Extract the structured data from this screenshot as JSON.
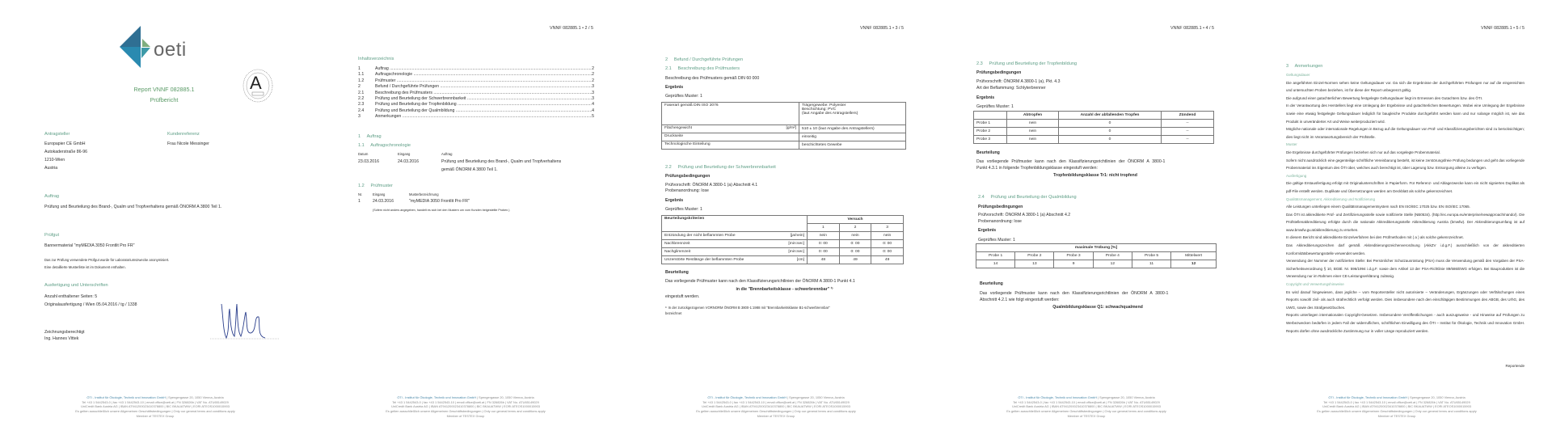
{
  "colors": {
    "heading_green": "#5e9e86",
    "footer_blue": "#4a88a8"
  },
  "footer": {
    "org": "ÖTI - Institut für Ökologie, Technik und Innovation GmbH",
    "address": " | Spengergasse 20, 1050 Vienna, Austria",
    "line2": "Tel +43 1 5442543-0 | fax +43 1 5442543-10 | email office@oeti.at | FN 326826b | VAT No. ATU65149029",
    "line3": "UniCredit Bank Austria AG | IBAN AT941200023410378800 | BIC BKAUATWW | EORI ATEOS1000015903",
    "line4": "Es gelten ausschließlich unsere Allgemeinen Geschäftsbedingungen | Only our general terms and conditions apply",
    "line5": "Member of TESTEX Group"
  },
  "page1": {
    "logo_text": "oeti",
    "seal_letter": "A",
    "report_title": "Report VNNF 082885.1",
    "report_subtitle": "Prüfbericht",
    "applicant_label": "Antragsteller",
    "applicant_lines": [
      "Europapier CE GmbH",
      "Autokaderstraße 86-96",
      "1210-Wien",
      "Austria"
    ],
    "customer_ref_label": "Kundenreferenz",
    "customer_ref": "Frau Nicole Messinger",
    "order_label": "Auftrag",
    "order_text": "Prüfung und Beurteilung des Brand-, Qualm und Tropfverhaltens gemäß ÖNORM A 3800 Teil 1.",
    "item_label": "Prüfgut",
    "item_text": "Bannermaterial \"myMEDIA 3050 Frontlit Pro FR\"",
    "item_note1": "Das zur Prüfung verwendete Prüfgut wurde für Laboratoriumszwecke anonymisiert.",
    "item_note2": "Eine detaillierte Musterliste ist im Dokument enthalten.",
    "execution_label": "Ausfertigung und Unterschriften",
    "pages_count": "Anzahl enthaltener Seiten: 5",
    "original": "Originalausfertigung / Wien  05.04.2016 / tg / 1338",
    "signatory_label": "Zeichnungsberechtigt",
    "signatory_name": "Ing. Hannes Vittek"
  },
  "page2": {
    "header": "VNNF 082885.1  •  2 / 5",
    "toc_title": "Inhaltsverzeichnis",
    "toc": [
      {
        "num": "1",
        "title": "Auftrag",
        "page": "2"
      },
      {
        "num": "1.1",
        "title": "Auftragschronologie",
        "page": "2"
      },
      {
        "num": "1.2",
        "title": "Prüfmuster",
        "page": "2"
      },
      {
        "num": "2",
        "title": "Befund / Durchgeführte Prüfungen",
        "page": "3"
      },
      {
        "num": "2.1",
        "title": "Beschreibung des Prüfmusters",
        "page": "3"
      },
      {
        "num": "2.2",
        "title": "Prüfung und Beurteilung der Schwerbrennbarkeit",
        "page": "3"
      },
      {
        "num": "2.3",
        "title": "Prüfung und Beurteilung der Tropfenbildung",
        "page": "4"
      },
      {
        "num": "2.4",
        "title": "Prüfung und Beurteilung der Qualmbildung",
        "page": "4"
      },
      {
        "num": "3",
        "title": "Anmerkungen",
        "page": "5"
      }
    ],
    "s1": "1     Auftrag",
    "s11": "1.1     Auftragschronologie",
    "chron_headers": [
      "Datum",
      "Eingang",
      "Auftrag"
    ],
    "chron_row": [
      "23.03.2016",
      "24.03.2016",
      "Prüfung und Beurteilung des Brand-, Qualm und Tropfverhaltens",
      "gemäß ÖNORM A 3800 Teil 1."
    ],
    "s12": "1.2     Prüfmuster",
    "sample_headers": [
      "Nr.",
      "Eingang",
      "Musterbezeichnung"
    ],
    "sample_row": [
      "1",
      "24.03.2016",
      "\"myMEDIA 3050 Frontlit Pro FR\""
    ],
    "sample_note": "(Sofern nicht anders angegeben, handelt es sich bei den Mustern um vom Kunden beigestellte Proben.)"
  },
  "page3": {
    "header": "VNNF 082885.1  •  3 / 5",
    "s2": "2     Befund / Durchgeführte Prüfungen",
    "s21": "2.1     Beschreibung des Prüfmusters",
    "desc": "Beschreibung des Prüfmusters gemäß DIN 60 000",
    "result": "Ergebnis",
    "tested": "Geprüftes Muster: 1",
    "t1": [
      {
        "k": "Faserart gemäß DIN ISO 2076",
        "u": "",
        "v": [
          "Trägergewebe: Polyester",
          "Beschichtung: PVC",
          "(laut Angabe des Antragstellers)"
        ]
      },
      {
        "k": "Flächengewicht",
        "u": "[g/m²]",
        "v": [
          "510 ± 10 (laut Angabe des Antragstellers)"
        ]
      },
      {
        "k": "Druckseite",
        "u": "",
        "v": [
          "einseitig"
        ]
      },
      {
        "k": "Technologische Einteilung",
        "u": "",
        "v": [
          "beschichtetes Gewebe"
        ]
      }
    ],
    "s22": "2.2     Prüfung und Beurteilung der Schwerbrennbarkeit",
    "conditions": "Prüfungsbedingungen",
    "spec": "Prüfvorschrift: ÖNORM A 3800-1 (a) Abschnitt 4.1",
    "arrangement": "Probenanordnung: lose",
    "result2": "Ergebnis",
    "tested2": "Geprüftes Muster: 1",
    "t2_head": "Beurteilungskriterien",
    "t2_group": "Versuch",
    "t2_cols": [
      "1",
      "2",
      "3"
    ],
    "t2_rows": [
      {
        "k": "Entzündung der nicht beflammten Probe",
        "u": "[ja/nein]",
        "v": [
          "nein",
          "nein",
          "nein"
        ]
      },
      {
        "k": "Nachbrennzeit",
        "u": "[min:sec]",
        "v": [
          "0: 00",
          "0: 00",
          "0: 00"
        ]
      },
      {
        "k": "Nachglimmzeit",
        "u": "[min:sec]",
        "v": [
          "0: 00",
          "0: 00",
          "0: 00"
        ]
      },
      {
        "k": "Unzerstörte Restlänge der beflammten Probe",
        "u": "[cm]",
        "v": [
          "48",
          "49",
          "49"
        ]
      }
    ],
    "assessment": "Beurteilung",
    "assess_text": "Das vorliegende Prüfmuster kann nach den Klassifizierungsrichtlinien der ÖNORM A 3800-1 Punkt 4.1",
    "assess_class": "in die \"Brennbarkeitsklasse - schwerbrennbar\" ¹⁾",
    "assess_end": "eingestuft werden.",
    "footnote1": "¹⁾ In der zurückgezogenen VORNORM ÖNORM B 3800-1:1988 mit \"Brennbarkeitsklasse B1-schwerbrennbar\"",
    "footnote2": "bezeichnet"
  },
  "page4": {
    "header": "VNNF 082885.1  •  4 / 5",
    "s23": "2.3     Prüfung und Beurteilung der Tropfenbildung",
    "conditions": "Prüfungsbedingungen",
    "spec": "Prüfvorschrift: ÖNORM A 3800-1 (a), Pkt. 4.3",
    "flame": "Art der Beflammung: Schlyterbrenner",
    "result": "Ergebnis",
    "tested": "Geprüftes Muster: 1",
    "t3_cols": [
      "",
      "Abtropfen",
      "Anzahl der abfallenden Tropfen",
      "Zündend"
    ],
    "t3_rows": [
      [
        "Probe 1",
        "nein",
        "0",
        "--"
      ],
      [
        "Probe 2",
        "nein",
        "0",
        "--"
      ],
      [
        "Probe 3",
        "nein",
        "0",
        "--"
      ]
    ],
    "assessment": "Beurteilung",
    "assess_text1": "Das vorliegende Prüfmuster kann nach den Klassifizierungsrichtlinien der ÖNORM A 3800-1",
    "assess_text2": "Punkt 4.3.1 in folgende Tropfenbildungsklasse eingestuft werden:",
    "assess_class": "Tropfenbildungsklasse Tr1: nicht tropfend",
    "s24": "2.4     Prüfung und Beurteilung der Qualmbildung",
    "conditions2": "Prüfungsbedingungen",
    "spec2": "Prüfvorschrift: ÖNORM A 3800-1 (a) Abschnitt 4.2",
    "arrangement2": "Probenanordnung: lose",
    "result2": "Ergebnis",
    "tested2": "Geprüftes Muster: 1",
    "t4_head": "maximale Trübung [%]",
    "t4_cols": [
      "Probe 1",
      "Probe 2",
      "Probe 3",
      "Probe 4",
      "Probe 5",
      "Mittelwert"
    ],
    "t4_vals": [
      "14",
      "13",
      "9",
      "12",
      "11",
      "12"
    ],
    "assessment2": "Beurteilung",
    "assess2_text1": "Das vorliegende Prüfmuster kann nach den Klassifizierungsrichtlinien der ÖNORM A 3800-1",
    "assess2_text2": "Abschnitt 4.2.1 wie folgt eingestuft werden:",
    "assess2_class": "Qualmbildungsklasse Q1: schwachqualmend"
  },
  "page5": {
    "header": "VNNF 082885.1  •  5 / 5",
    "s3": "3     Anmerkungen",
    "blocks": [
      {
        "type": "sub",
        "text": "Geltungsdauer"
      },
      {
        "type": "p",
        "text": "Die angeführten Einzel-Normen sehen keine Geltungsdauer vor. Da sich die Ergebnisse der durchgeführten Prüfungen nur auf die eingereichten und untersuchten Proben beziehen, ist für diese der Report unbegrenzt gültig."
      },
      {
        "type": "p",
        "text": "Die aufgrund einer gutachterlichen Bewertung festgelegte Geltungsdauer liegt im Ermessen des Gutachters bzw. des ÖTI."
      },
      {
        "type": "p",
        "text": "In der Verantwortung des Herstellers liegt eine Umlegung der Ergebnisse und gutachterlichen Bewertungen. Wobei eine Umlegung der Ergebnisse sowie eine etwaig festgelegte Geltungsdauer lediglich für baugleiche Produkte durchgeführt werden kann und nur solange möglich ist, wie das Produkt in unveränderter Art und Weise weiterproduziert wird."
      },
      {
        "type": "p",
        "text": "Mögliche nationale oder internationale Regelungen in Bezug auf die Geltungsdauer von Prüf- und Klassifizierungsberichten sind zu berücksichtigen; dies liegt nicht im Verantwortungsbereich der Prüfstelle."
      },
      {
        "type": "sub",
        "text": "Muster"
      },
      {
        "type": "p",
        "text": "Die Ergebnisse durchgeführter Prüfungen beziehen sich nur auf das vorgelegte Probenmaterial."
      },
      {
        "type": "p",
        "text": "Sofern nicht ausdrücklich eine gegenteilige schriftliche Vereinbarung besteht, ist keine zerstörungsfreie Prüfung bedungen und geht das vorliegende Probenmaterial ins Eigentum des ÖTI über, welches auch berechtigt ist, über Lagerung bzw. Entsorgung alleine zu verfügen."
      },
      {
        "type": "sub",
        "text": "Ausfertigung"
      },
      {
        "type": "p",
        "text": "Die gültige Erstausfertigung erfolgt mit Originalunterschriften in Papierform. Für Referenz- und Ablagezwecke kann ein nicht signiertes Duplikat als pdf-File erstellt werden. Duplikate und Übersetzungen werden am Deckblatt als solche gekennzeichnet."
      },
      {
        "type": "sub",
        "text": "Qualitätsmanagement, Akkreditierung und Notifizierung"
      },
      {
        "type": "p",
        "text": "Alle Leistungen unterliegen einem Qualitätsmanagementsystem nach EN ISO/IEC 17025 bzw. EN ISO/IEC 17065."
      },
      {
        "type": "p",
        "text": "Das ÖTI ist akkreditierte Prüf- und Zertifizierungsstelle sowie notifizierte Stelle (NB0534). (http://ec.europa.eu/enterprise/newapproach/nando/). Die Prüfstellenakkreditierung erfolgte durch die nationale Akkreditierungsstelle Akkreditierung Austria (bmwfw). Der Akkreditierungsumfang ist auf www.bmwfw.gv.at/akkreditierung zu ersehen."
      },
      {
        "type": "p",
        "text": "In diesem Bericht sind akkreditierte Einzelverfahren bei den Prüfmethoden mit ( a ) als solche gekennzeichnet."
      },
      {
        "type": "p",
        "text": "Das Akkreditierungszeichen darf gemäß Akkreditierungszeichenverordnung (AkkZV i.d.g.F.) ausschließlich von der akkreditierten Konformitätsbewertungsstelle verwendet werden."
      },
      {
        "type": "p",
        "text": "Verwendung der Nummer der notifizierten Stelle: Bei Persönlicher Schutzausrüstung (PSA) muss die Verwendung gemäß den Vorgaben der PSA-Sicherheitsverordnung § 10, BGBl. Nr. 596/1994 i.d.g.F. sowie dem Artikel 13 der PSA-Richtlinie 89/686/EWG erfolgen. Bei Bauprodukten ist die Verwendung nur im Rahmen einer CE-Leistungserklärung zulässig."
      },
      {
        "type": "sub",
        "text": "Copyright und Verwertungshinweise"
      },
      {
        "type": "p",
        "text": "Es wird darauf hingewiesen, dass jegliche – vom Reportersteller nicht autorisierte – Veränderungen, Ergänzungen oder Verfälschungen eines Reports sowohl zivil- als auch strafrechtlich verfolgt werden. Dies insbesondere nach den einschlägigen Bestimmungen des ABGB, des UrhG, des UWG, sowie des Strafgesetzbuches."
      },
      {
        "type": "p",
        "text": "Reports unterliegen internationalen Copyright-Gesetzen. Insbesondere Veröffentlichungen - auch auszugsweise - und Hinweise auf Prüfungen zu Werbezwecken bedürfen in jedem Fall der widerruflichen, schriftlichen Einwilligung des ÖTI – Institut für Ökologie, Technik und Innovation GmbH. Reports dürfen ohne ausdrückliche Zustimmung nur in voller Länge reproduziert werden."
      }
    ],
    "end": "Reportende"
  }
}
